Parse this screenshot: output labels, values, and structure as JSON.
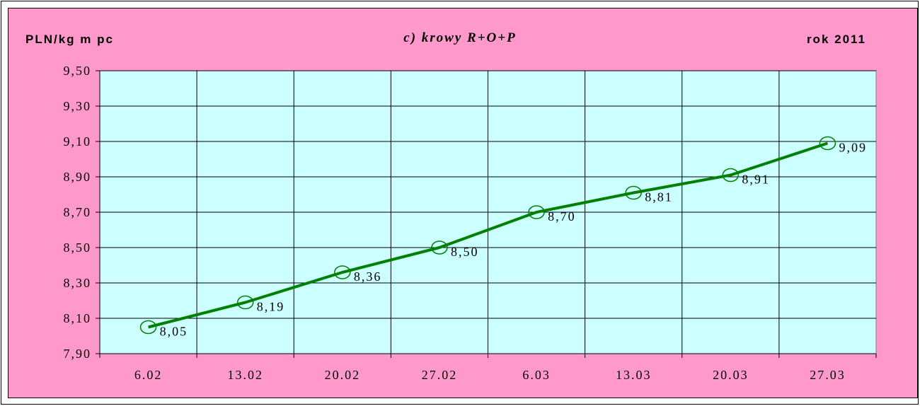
{
  "header": {
    "ylabel": "PLN/kg m pc",
    "title": "c) krowy R+O+P",
    "year": "rok 2011"
  },
  "colors": {
    "background": "#ff99cc",
    "plot_area": "#ccffff",
    "line": "#008000",
    "gridline": "#000000"
  },
  "chart_data": {
    "type": "line",
    "title": "c) krowy R+O+P",
    "ylabel": "PLN/kg m pc",
    "xlabel": "",
    "categories": [
      "6.02",
      "13.02",
      "20.02",
      "27.02",
      "6.03",
      "13.03",
      "20.03",
      "27.03"
    ],
    "series": [
      {
        "values": [
          8.05,
          8.19,
          8.36,
          8.5,
          8.7,
          8.81,
          8.91,
          9.09
        ],
        "labels": [
          "8,05",
          "8,19",
          "8,36",
          "8,50",
          "8,70",
          "8,81",
          "8,91",
          "9,09"
        ],
        "marker": "circle-open"
      }
    ],
    "ylim": [
      7.9,
      9.5
    ],
    "yticks": [
      7.9,
      8.1,
      8.3,
      8.5,
      8.7,
      8.9,
      9.1,
      9.3,
      9.5
    ],
    "ytick_labels": [
      "7,90",
      "8,10",
      "8,30",
      "8,50",
      "8,70",
      "8,90",
      "9,10",
      "9,30",
      "9,50"
    ],
    "grid": true,
    "legend": "none"
  }
}
